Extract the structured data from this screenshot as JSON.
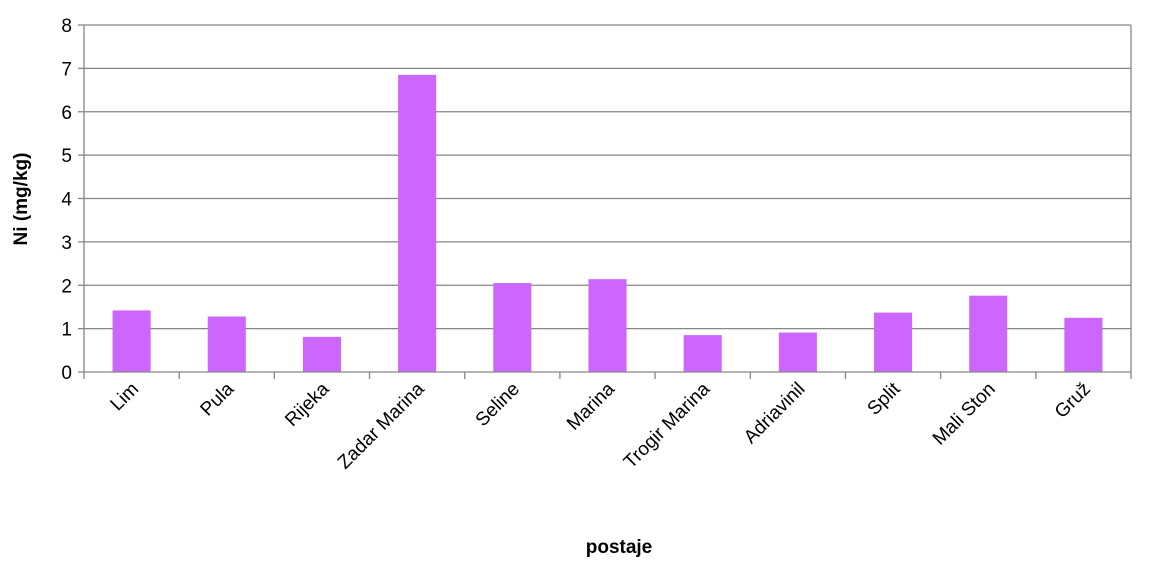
{
  "chart_data": {
    "type": "bar",
    "categories": [
      "Lim",
      "Pula",
      "Rijeka",
      "Zadar Marina",
      "Seline",
      "Marina",
      "Trogir Marina",
      "Adriavinil",
      "Split",
      "Mali Ston",
      "Gruž"
    ],
    "values": [
      1.42,
      1.28,
      0.81,
      6.85,
      2.05,
      2.14,
      0.85,
      0.91,
      1.37,
      1.76,
      1.25
    ],
    "xlabel": "postaje",
    "ylabel": "Ni (mg/kg)",
    "ylim": [
      0,
      8
    ],
    "yticks": [
      0,
      1,
      2,
      3,
      4,
      5,
      6,
      7,
      8
    ],
    "grid": true,
    "legend": "none",
    "bar_color": "#cc66ff",
    "grid_color": "#868686",
    "axis_color": "#868686"
  }
}
